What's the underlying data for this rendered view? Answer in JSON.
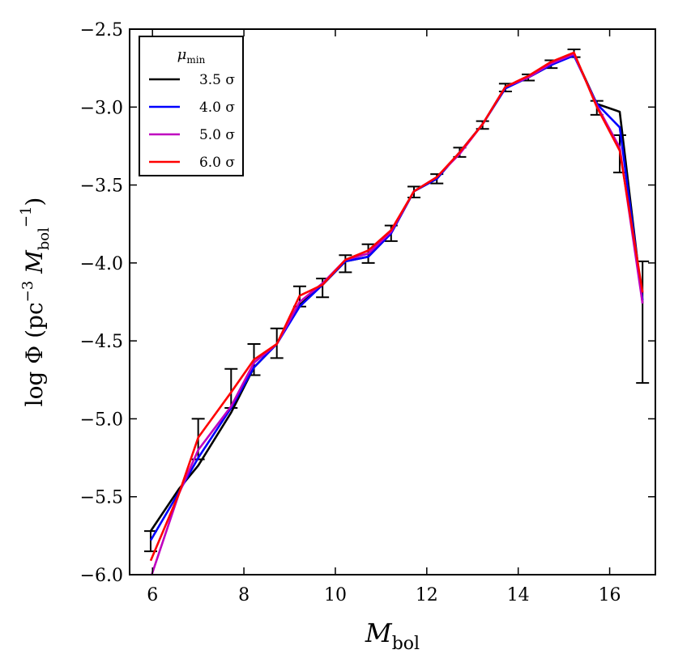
{
  "chart_data": {
    "type": "line",
    "title": "",
    "xlabel": {
      "main": "M",
      "sub": "bol"
    },
    "ylabel": {
      "prefix": "log Φ (pc",
      "sup1": "−3",
      "mid": " M",
      "sub": "bol",
      "sup2": "−1",
      "suffix": ")"
    },
    "xlim": [
      5.5,
      17.0
    ],
    "ylim": [
      -6.0,
      -2.5
    ],
    "xticks": [
      6,
      8,
      10,
      12,
      14,
      16
    ],
    "yticks": [
      -6.0,
      -5.5,
      -5.0,
      -4.5,
      -4.0,
      -3.5,
      -3.0,
      -2.5
    ],
    "xtick_labels": [
      "6",
      "8",
      "10",
      "12",
      "14",
      "16"
    ],
    "ytick_labels": [
      "−6.0",
      "−5.5",
      "−5.0",
      "−4.5",
      "−4.0",
      "−3.5",
      "−3.0",
      "−2.5"
    ],
    "legend": {
      "title": "μ",
      "title_sub": "min",
      "placement": "top-left"
    },
    "x": [
      5.96,
      6.58,
      7.0,
      7.72,
      8.22,
      8.72,
      9.22,
      9.72,
      10.22,
      10.72,
      11.22,
      11.72,
      12.22,
      12.72,
      13.22,
      13.72,
      14.22,
      14.72,
      15.22,
      15.72,
      16.22,
      16.72
    ],
    "series": [
      {
        "name": "3.5 σ",
        "color": "#000000",
        "values": [
          -5.72,
          -5.45,
          -5.3,
          -4.96,
          -4.67,
          -4.52,
          -4.27,
          -4.14,
          -3.99,
          -3.96,
          -3.81,
          -3.54,
          -3.46,
          -3.29,
          -3.11,
          -2.87,
          -2.81,
          -2.73,
          -2.66,
          -2.98,
          -3.03,
          -4.26
        ]
      },
      {
        "name": "4.0 σ",
        "color": "#0000ff",
        "values": [
          -5.78,
          -5.47,
          -5.25,
          -4.93,
          -4.67,
          -4.52,
          -4.28,
          -4.14,
          -3.99,
          -3.96,
          -3.81,
          -3.54,
          -3.46,
          -3.29,
          -3.11,
          -2.88,
          -2.81,
          -2.73,
          -2.67,
          -2.98,
          -3.13,
          -4.24
        ]
      },
      {
        "name": "5.0 σ",
        "color": "#bf00bf",
        "values": [
          -6.02,
          -5.48,
          -5.2,
          -4.92,
          -4.64,
          -4.52,
          -4.25,
          -4.13,
          -3.98,
          -3.94,
          -3.8,
          -3.54,
          -3.45,
          -3.3,
          -3.11,
          -2.87,
          -2.81,
          -2.72,
          -2.66,
          -2.99,
          -3.26,
          -4.26
        ]
      },
      {
        "name": "6.0 σ",
        "color": "#ff0000",
        "values": [
          -5.91,
          -5.48,
          -5.12,
          -4.83,
          -4.62,
          -4.52,
          -4.21,
          -4.14,
          -3.98,
          -3.92,
          -3.79,
          -3.54,
          -3.45,
          -3.29,
          -3.11,
          -2.87,
          -2.8,
          -2.71,
          -2.65,
          -3.0,
          -3.28,
          -4.19
        ]
      }
    ],
    "errorbars": [
      {
        "x": 5.96,
        "low": -5.85,
        "high": -5.72
      },
      {
        "x": 7.0,
        "low": -5.26,
        "high": -5.0
      },
      {
        "x": 7.72,
        "low": -4.93,
        "high": -4.68
      },
      {
        "x": 8.22,
        "low": -4.72,
        "high": -4.52
      },
      {
        "x": 8.72,
        "low": -4.61,
        "high": -4.42
      },
      {
        "x": 9.22,
        "low": -4.28,
        "high": -4.15
      },
      {
        "x": 9.72,
        "low": -4.22,
        "high": -4.1
      },
      {
        "x": 10.22,
        "low": -4.06,
        "high": -3.95
      },
      {
        "x": 10.72,
        "low": -4.0,
        "high": -3.88
      },
      {
        "x": 11.22,
        "low": -3.86,
        "high": -3.76
      },
      {
        "x": 11.72,
        "low": -3.58,
        "high": -3.51
      },
      {
        "x": 12.22,
        "low": -3.49,
        "high": -3.43
      },
      {
        "x": 12.72,
        "low": -3.32,
        "high": -3.26
      },
      {
        "x": 13.22,
        "low": -3.14,
        "high": -3.09
      },
      {
        "x": 13.72,
        "low": -2.9,
        "high": -2.85
      },
      {
        "x": 14.22,
        "low": -2.83,
        "high": -2.79
      },
      {
        "x": 14.72,
        "low": -2.75,
        "high": -2.7
      },
      {
        "x": 15.22,
        "low": -2.68,
        "high": -2.63
      },
      {
        "x": 15.72,
        "low": -3.05,
        "high": -2.96
      },
      {
        "x": 16.22,
        "low": -3.42,
        "high": -3.18
      },
      {
        "x": 16.72,
        "low": -4.77,
        "high": -3.99
      }
    ]
  }
}
